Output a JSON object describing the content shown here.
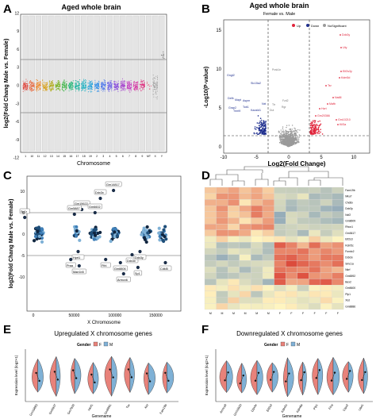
{
  "panels": {
    "A": {
      "letter": "A",
      "title": "Aged whole brain",
      "ylabel": "log2(Fold Chang Male vs. Female)",
      "xlabel": "Chromosome",
      "yticks": [
        "-12",
        "-9",
        "-6",
        "-3",
        "0",
        "3",
        "6",
        "9",
        "12",
        "15"
      ],
      "chromosomes": [
        "1",
        "10",
        "11",
        "12",
        "13",
        "14",
        "15",
        "16",
        "17",
        "18",
        "19",
        "2",
        "3",
        "4",
        "5",
        "6",
        "7",
        "8",
        "9",
        "MT",
        "X",
        "Y"
      ]
    },
    "B": {
      "letter": "B",
      "title": "Aged whole brain",
      "subtitle": "Female vs. Male",
      "ylabel": "-Log10(P-value)",
      "xlabel": "Log2(Fold Change)",
      "legend": [
        "Up",
        "Down",
        "NoSignificant"
      ],
      "xticks": [
        "-10",
        "-5",
        "0",
        "5",
        "10"
      ],
      "yticks": [
        "0",
        "5",
        "10",
        "15"
      ],
      "up_labels": [
        "Ddx3y",
        "Uty",
        "Eif2s3y",
        "Kdm5d",
        "Tsr",
        "Nat8l",
        "Mafb",
        "Hcrt",
        "Gm20366",
        "Gm10210",
        "Kif3a"
      ],
      "down_labels": [
        "Gngt2",
        "Slc15a2",
        "Defb",
        "Mapt",
        "Aspm",
        "Grap2",
        "Tob1",
        "Kazald1",
        "Trmt9",
        "Nxt"
      ],
      "ns_labels": [
        "Pcsk1n",
        "Ttr",
        "Fzd2",
        "Rgr",
        "Dut"
      ]
    },
    "C": {
      "letter": "C",
      "ylabel": "log2(Fold Chang Male vs. Female)",
      "xlabel": "X Chromosome",
      "xticks": [
        "0",
        "50000",
        "100000",
        "150000"
      ],
      "yticks": [
        "-10",
        "-5",
        "0",
        "5",
        "10"
      ],
      "labels_top": [
        "Gm14817",
        "Ddx3x",
        "Gm15622",
        "Gm6602",
        "Sp1r",
        "Gm5887"
      ],
      "labels_bottom": [
        "Hprt1",
        "Praa",
        "Mae1b5",
        "Fthl",
        "Ddx3x",
        "Ddx3y",
        "Gm8806",
        "Sp1",
        "Cdkl5",
        "Armcx6"
      ]
    },
    "D": {
      "letter": "D",
      "rows": [
        "Fam19b",
        "Mku7",
        "Chd6x",
        "Ddx3y",
        "Nxf2",
        "Gm8609",
        "Rhox1",
        "Gm3617",
        "Eif2s3",
        "Kdm5c",
        "Fundc2",
        "Ddx3x",
        "Smc1a",
        "Nkrf",
        "Gm6592",
        "Bex2",
        "Gm5600",
        "Plp1",
        "Xist",
        "Gm8886"
      ],
      "cols": [
        "M",
        "M",
        "M",
        "M",
        "M",
        "M",
        "F",
        "F",
        "F",
        "F",
        "F",
        "F"
      ]
    },
    "E": {
      "letter": "E",
      "title": "Upregulated X chromosome genes",
      "gender_label": "Gender",
      "legend": [
        "F",
        "M"
      ],
      "ylabel": "Expression level (log2+1)",
      "xlabel": "Genename",
      "genes": [
        "Gm19883",
        "Gm5937",
        "Gm7933",
        "Nkrf1",
        "Gm8891",
        "Tsx",
        "Xist",
        "Fam19b"
      ]
    },
    "F": {
      "letter": "F",
      "title": "Downregulated X chromosome genes",
      "gender_label": "Gender",
      "legend": [
        "F",
        "M"
      ],
      "ylabel": "Expression level (log2+1)",
      "xlabel": "Genename",
      "genes": [
        "Armcx6",
        "Gm15920",
        "Ddx3x",
        "Eif2s3",
        "Kdm5c",
        "Kdm6a",
        "Plp1",
        "Flna",
        "Ctps2",
        "Uba1"
      ]
    }
  },
  "colors": {
    "up": "#e0243b",
    "down": "#20308f",
    "ns": "#9a9a9a",
    "female": "#e8827a",
    "male": "#7fb1d6",
    "heat_high": "#d73027",
    "heat_mid": "#fff5c0",
    "heat_low": "#4575b4"
  }
}
